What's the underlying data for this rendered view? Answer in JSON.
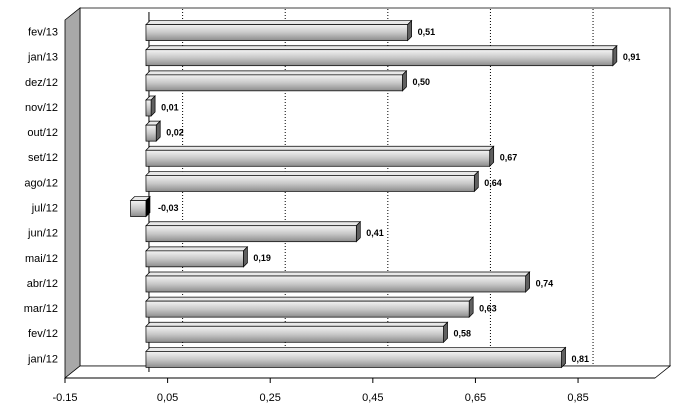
{
  "chart_data": {
    "type": "bar",
    "orientation": "horizontal",
    "categories": [
      "fev/13",
      "jan/13",
      "dez/12",
      "nov/12",
      "out/12",
      "set/12",
      "ago/12",
      "jul/12",
      "jun/12",
      "mai/12",
      "abr/12",
      "mar/12",
      "fev/12",
      "jan/12"
    ],
    "values": [
      0.51,
      0.91,
      0.5,
      0.01,
      0.02,
      0.67,
      0.64,
      -0.03,
      0.41,
      0.19,
      0.74,
      0.63,
      0.58,
      0.81
    ],
    "value_labels": [
      "0,51",
      "0,91",
      "0,50",
      "0,01",
      "0,02",
      "0,67",
      "0,64",
      "-0,03",
      "0,41",
      "0,19",
      "0,74",
      "0,63",
      "0,58",
      "0,81"
    ],
    "color": "#a0a0a0",
    "xlim": [
      -0.15,
      1.0
    ],
    "xticks": [
      {
        "value": -0.15,
        "label": "-0.15"
      },
      {
        "value": 0.05,
        "label": "0,05"
      },
      {
        "value": 0.25,
        "label": "0,25"
      },
      {
        "value": 0.45,
        "label": "0,45"
      },
      {
        "value": 0.65,
        "label": "0,65"
      },
      {
        "value": 0.85,
        "label": "0,85"
      }
    ],
    "grid": true
  }
}
